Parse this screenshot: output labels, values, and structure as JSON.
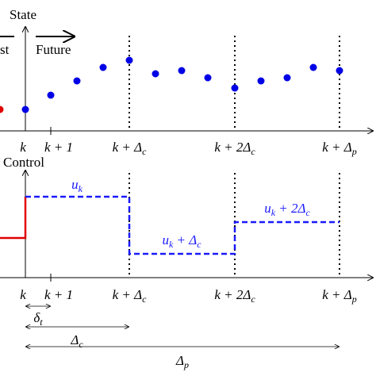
{
  "top": {
    "axis_label": "State",
    "past": "st",
    "future": "Future",
    "ticks": [
      {
        "main": "k",
        "sub": ""
      },
      {
        "main": "k + 1",
        "sub": ""
      },
      {
        "main": "k + Δ",
        "sub": "c"
      },
      {
        "main": "k + 2Δ",
        "sub": "c"
      },
      {
        "main": "k + Δ",
        "sub": "p"
      }
    ]
  },
  "bottom": {
    "axis_label": "Control",
    "ticks": [
      {
        "main": "k",
        "sub": ""
      },
      {
        "main": "k + 1",
        "sub": ""
      },
      {
        "main": "k + Δ",
        "sub": "c"
      },
      {
        "main": "k + 2Δ",
        "sub": "c"
      },
      {
        "main": "k + Δ",
        "sub": "p"
      }
    ],
    "controls": [
      {
        "main": "u",
        "sub": "k",
        "rest": ""
      },
      {
        "main": "u",
        "sub": "k",
        "rest": " + Δ",
        "rest_sub": "c"
      },
      {
        "main": "u",
        "sub": "k",
        "rest": " + 2Δ",
        "rest_sub": "c"
      }
    ],
    "intervals": [
      {
        "main": "δ",
        "sub": "t"
      },
      {
        "main": "Δ",
        "sub": "c"
      },
      {
        "main": "Δ",
        "sub": "p"
      }
    ]
  }
}
